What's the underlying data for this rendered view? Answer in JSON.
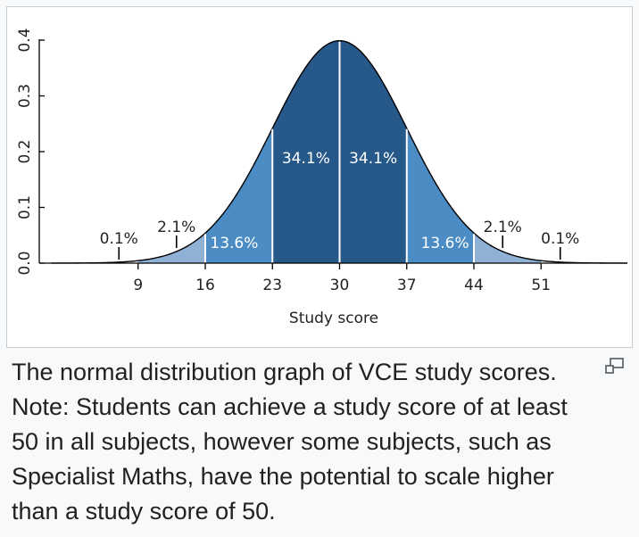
{
  "chart_data": {
    "type": "area",
    "title": "",
    "xlabel": "Study score",
    "ylabel": "",
    "xlim": [
      0,
      60
    ],
    "ylim": [
      0,
      0.4
    ],
    "x_ticks": [
      9,
      16,
      23,
      30,
      37,
      44,
      51
    ],
    "y_ticks": [
      "0.0",
      "0.1",
      "0.2",
      "0.3",
      "0.4"
    ],
    "mean": 30,
    "sd": 7,
    "curve": "normal pdf in standard-deviation units (peak 0.3989)",
    "bands": [
      {
        "from": 0,
        "to": 9,
        "label": "0.1%",
        "color": "#ffffff"
      },
      {
        "from": 9,
        "to": 16,
        "label": "2.1%",
        "color": "#8fb1d6"
      },
      {
        "from": 16,
        "to": 23,
        "label": "13.6%",
        "color": "#4a8cc3"
      },
      {
        "from": 23,
        "to": 30,
        "label": "34.1%",
        "color": "#26598a"
      },
      {
        "from": 30,
        "to": 37,
        "label": "34.1%",
        "color": "#26598a"
      },
      {
        "from": 37,
        "to": 44,
        "label": "13.6%",
        "color": "#4a8cc3"
      },
      {
        "from": 44,
        "to": 51,
        "label": "2.1%",
        "color": "#8fb1d6"
      },
      {
        "from": 51,
        "to": 60,
        "label": "0.1%",
        "color": "#ffffff"
      }
    ],
    "grid": false,
    "legend": "none"
  },
  "caption": "The normal distribution graph of VCE study scores. Note: Students can achieve a study score of at least 50 in all subjects, however some subjects, such as Specialist Maths, have the potential to scale higher than a study score of 50.",
  "icons": {
    "enlarge": "enlarge-icon"
  }
}
